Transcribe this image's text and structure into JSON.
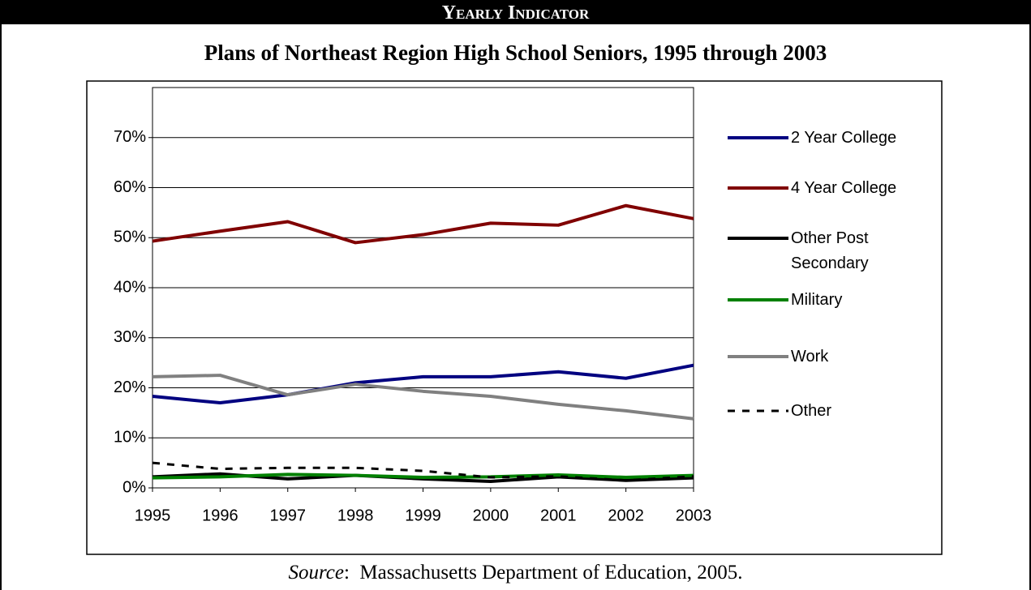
{
  "header": "Yearly Indicator",
  "chart_data": {
    "type": "line",
    "title": "Plans of Northeast Region High School Seniors, 1995 through 2003",
    "x": [
      1995,
      1996,
      1997,
      1998,
      1999,
      2000,
      2001,
      2002,
      2003
    ],
    "xlim": [
      1995,
      2003
    ],
    "xticks": [
      1995,
      1996,
      1997,
      1998,
      1999,
      2000,
      2001,
      2002,
      2003
    ],
    "ylim": [
      0,
      80
    ],
    "yticks": [
      {
        "value": 0,
        "label": "0%"
      },
      {
        "value": 10,
        "label": "10%"
      },
      {
        "value": 20,
        "label": "20%"
      },
      {
        "value": 30,
        "label": "30%"
      },
      {
        "value": 40,
        "label": "40%"
      },
      {
        "value": 50,
        "label": "50%"
      },
      {
        "value": 60,
        "label": "60%"
      },
      {
        "value": 70,
        "label": "70%"
      }
    ],
    "grid": true,
    "legend": "right",
    "series": [
      {
        "name": "2 Year College",
        "color": "#000080",
        "values": [
          18.3,
          17.0,
          18.6,
          21.0,
          22.2,
          22.2,
          23.2,
          21.9,
          24.5
        ]
      },
      {
        "name": "4 Year College",
        "color": "#800000",
        "values": [
          49.3,
          51.3,
          53.2,
          49.0,
          50.6,
          52.9,
          52.5,
          56.4,
          53.8
        ]
      },
      {
        "name": "Other Post Secondary",
        "color": "#000000",
        "values": [
          2.2,
          2.8,
          1.8,
          2.5,
          1.8,
          1.3,
          2.2,
          1.5,
          2.0
        ]
      },
      {
        "name": "Military",
        "color": "#008000",
        "values": [
          2.0,
          2.2,
          2.7,
          2.5,
          2.1,
          2.2,
          2.6,
          2.1,
          2.5
        ]
      },
      {
        "name": "Work",
        "color": "#808080",
        "values": [
          22.2,
          22.5,
          18.6,
          20.7,
          19.3,
          18.3,
          16.7,
          15.4,
          13.8
        ]
      },
      {
        "name": "Other",
        "color": "#000000",
        "line_style": "dashed",
        "values": [
          5.0,
          3.8,
          4.0,
          4.0,
          3.4,
          2.1,
          2.3,
          1.5,
          2.3
        ]
      }
    ]
  },
  "source": {
    "label": "Source",
    "text": ":  Massachusetts Department of Education, 2005."
  }
}
